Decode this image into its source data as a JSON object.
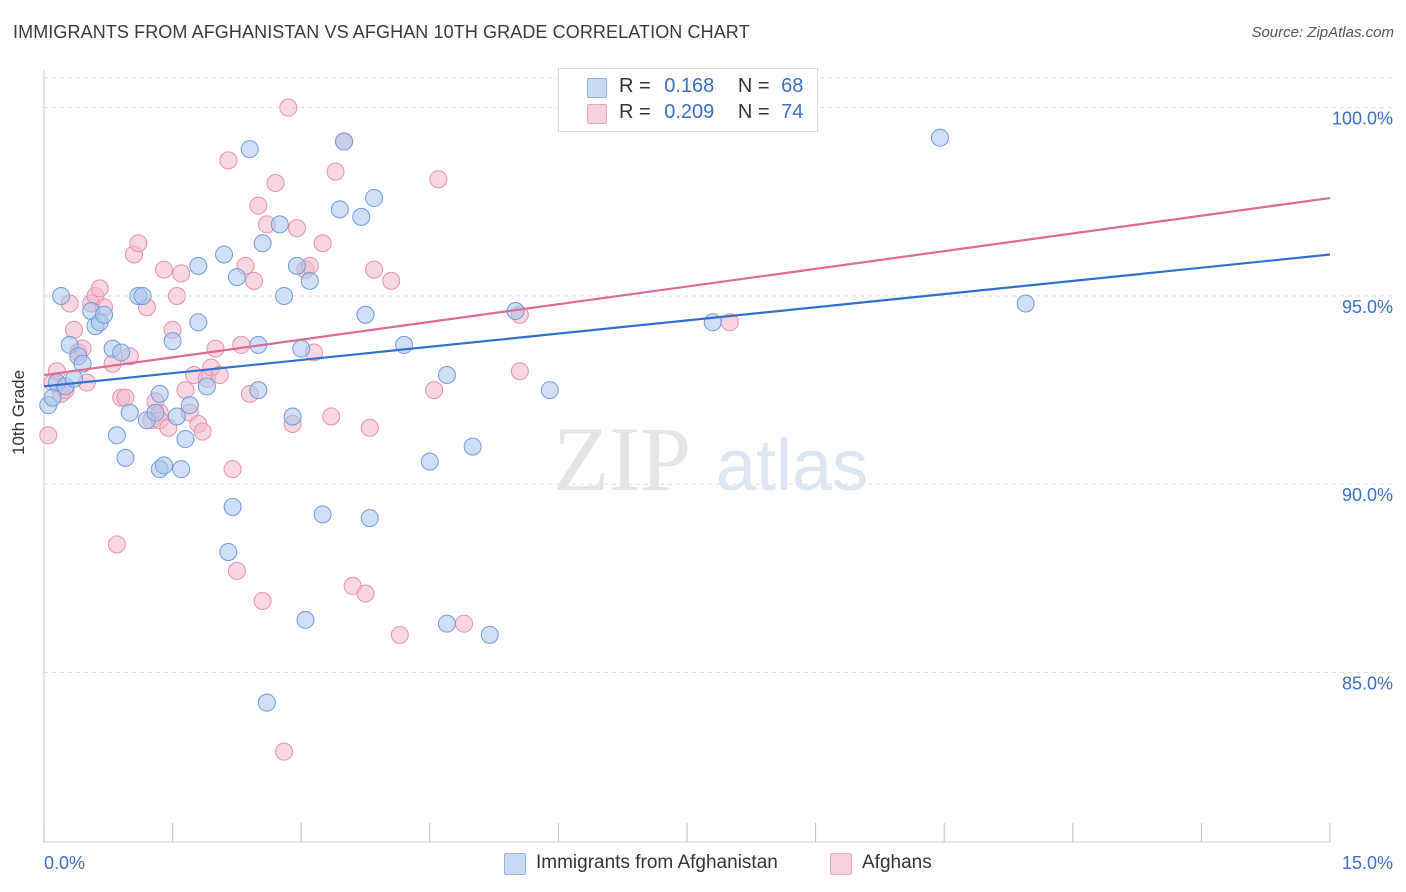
{
  "header": {
    "title": "IMMIGRANTS FROM AFGHANISTAN VS AFGHAN 10TH GRADE CORRELATION CHART",
    "source": "Source: ZipAtlas.com"
  },
  "watermark": {
    "zip": "ZIP",
    "atlas": "atlas"
  },
  "legend": {
    "rows": [
      {
        "r_label": "R =",
        "r_value": "0.168",
        "n_label": "N =",
        "n_value": "68",
        "color": "#a8c4ec"
      },
      {
        "r_label": "R =",
        "r_value": "0.209",
        "n_label": "N =",
        "n_value": "74",
        "color": "#f3b6cb"
      }
    ]
  },
  "bottom_legend": [
    {
      "label": "Immigrants from Afghanistan",
      "color": "#a8c4ec"
    },
    {
      "label": "Afghans",
      "color": "#f3b6cb"
    }
  ],
  "colors": {
    "blue_fill": "#a8c4ec",
    "blue_stroke": "#6f9bd8",
    "blue_line": "#2f6fcf",
    "pink_fill": "#f3b6cb",
    "pink_stroke": "#e690ae",
    "pink_line": "#e06a96",
    "grid": "#dddddd",
    "axis_label": "#3a6fc8"
  },
  "chart_data": {
    "type": "scatter",
    "title": "IMMIGRANTS FROM AFGHANISTAN VS AFGHAN 10TH GRADE CORRELATION CHART",
    "xlabel": "",
    "ylabel": "10th Grade",
    "xlim": [
      0,
      15
    ],
    "ylim": [
      80.5,
      101
    ],
    "x_tick_labels": [
      "0.0%",
      "15.0%"
    ],
    "y_ticks": [
      85,
      90,
      95,
      100
    ],
    "y_tick_labels": [
      "85.0%",
      "90.0%",
      "95.0%",
      "100.0%"
    ],
    "grid": true,
    "legend_position": "top-center",
    "series": [
      {
        "name": "Immigrants from Afghanistan",
        "r": 0.168,
        "n": 68,
        "trend": [
          [
            0,
            92.6
          ],
          [
            15,
            96.1
          ]
        ],
        "points": [
          [
            0.05,
            92.1
          ],
          [
            0.1,
            92.3
          ],
          [
            0.15,
            92.7
          ],
          [
            0.2,
            95.0
          ],
          [
            0.25,
            92.6
          ],
          [
            0.3,
            93.7
          ],
          [
            0.35,
            92.8
          ],
          [
            0.4,
            93.4
          ],
          [
            0.45,
            93.2
          ],
          [
            0.55,
            94.6
          ],
          [
            0.6,
            94.2
          ],
          [
            0.65,
            94.3
          ],
          [
            0.7,
            94.5
          ],
          [
            0.8,
            93.6
          ],
          [
            0.85,
            91.3
          ],
          [
            0.9,
            93.5
          ],
          [
            0.95,
            90.7
          ],
          [
            1.0,
            91.9
          ],
          [
            1.1,
            95.0
          ],
          [
            1.15,
            95.0
          ],
          [
            1.2,
            91.7
          ],
          [
            1.3,
            91.9
          ],
          [
            1.35,
            92.4
          ],
          [
            1.35,
            90.4
          ],
          [
            1.4,
            90.5
          ],
          [
            1.5,
            93.8
          ],
          [
            1.55,
            91.8
          ],
          [
            1.6,
            90.4
          ],
          [
            1.65,
            91.2
          ],
          [
            1.7,
            92.1
          ],
          [
            1.8,
            95.8
          ],
          [
            1.8,
            94.3
          ],
          [
            1.9,
            92.6
          ],
          [
            2.1,
            96.1
          ],
          [
            2.15,
            88.2
          ],
          [
            2.2,
            89.4
          ],
          [
            2.25,
            95.5
          ],
          [
            2.4,
            98.9
          ],
          [
            2.5,
            93.7
          ],
          [
            2.5,
            92.5
          ],
          [
            2.55,
            96.4
          ],
          [
            2.6,
            84.2
          ],
          [
            2.75,
            96.9
          ],
          [
            2.8,
            95.0
          ],
          [
            2.9,
            91.8
          ],
          [
            2.95,
            95.8
          ],
          [
            3.0,
            93.6
          ],
          [
            3.1,
            95.4
          ],
          [
            3.05,
            86.4
          ],
          [
            3.25,
            89.2
          ],
          [
            3.45,
            97.3
          ],
          [
            3.5,
            99.1
          ],
          [
            3.7,
            97.1
          ],
          [
            3.75,
            94.5
          ],
          [
            3.8,
            89.1
          ],
          [
            3.85,
            97.6
          ],
          [
            4.2,
            93.7
          ],
          [
            4.5,
            90.6
          ],
          [
            4.7,
            86.3
          ],
          [
            4.7,
            92.9
          ],
          [
            5.0,
            91.0
          ],
          [
            5.2,
            86.0
          ],
          [
            5.5,
            94.6
          ],
          [
            5.9,
            92.5
          ],
          [
            6.8,
            100.0
          ],
          [
            7.8,
            94.3
          ],
          [
            10.45,
            99.2
          ],
          [
            11.45,
            94.8
          ]
        ]
      },
      {
        "name": "Afghans",
        "r": 0.209,
        "n": 74,
        "trend": [
          [
            0,
            92.9
          ],
          [
            15,
            97.6
          ]
        ],
        "points": [
          [
            0.05,
            91.3
          ],
          [
            0.1,
            92.7
          ],
          [
            0.15,
            93.0
          ],
          [
            0.2,
            92.4
          ],
          [
            0.25,
            92.5
          ],
          [
            0.3,
            94.8
          ],
          [
            0.35,
            94.1
          ],
          [
            0.4,
            93.5
          ],
          [
            0.45,
            93.6
          ],
          [
            0.5,
            92.7
          ],
          [
            0.55,
            94.8
          ],
          [
            0.6,
            95.0
          ],
          [
            0.65,
            95.2
          ],
          [
            0.7,
            94.7
          ],
          [
            0.8,
            93.2
          ],
          [
            0.85,
            88.4
          ],
          [
            0.9,
            92.3
          ],
          [
            0.95,
            92.3
          ],
          [
            1.0,
            93.4
          ],
          [
            1.05,
            96.1
          ],
          [
            1.1,
            96.4
          ],
          [
            1.2,
            94.7
          ],
          [
            1.25,
            91.7
          ],
          [
            1.3,
            92.2
          ],
          [
            1.35,
            91.9
          ],
          [
            1.35,
            91.7
          ],
          [
            1.4,
            95.7
          ],
          [
            1.45,
            91.5
          ],
          [
            1.5,
            94.1
          ],
          [
            1.55,
            95.0
          ],
          [
            1.6,
            95.6
          ],
          [
            1.65,
            92.5
          ],
          [
            1.7,
            91.9
          ],
          [
            1.75,
            92.9
          ],
          [
            1.8,
            91.6
          ],
          [
            1.85,
            91.4
          ],
          [
            1.9,
            92.8
          ],
          [
            1.95,
            93.1
          ],
          [
            2.0,
            93.6
          ],
          [
            2.05,
            92.9
          ],
          [
            2.15,
            98.6
          ],
          [
            2.2,
            90.4
          ],
          [
            2.25,
            87.7
          ],
          [
            2.3,
            93.7
          ],
          [
            2.35,
            95.8
          ],
          [
            2.4,
            92.4
          ],
          [
            2.45,
            95.4
          ],
          [
            2.5,
            97.4
          ],
          [
            2.55,
            86.9
          ],
          [
            2.6,
            96.9
          ],
          [
            2.7,
            98.0
          ],
          [
            2.8,
            82.9
          ],
          [
            2.85,
            100.0
          ],
          [
            2.9,
            91.6
          ],
          [
            2.95,
            96.8
          ],
          [
            3.05,
            95.7
          ],
          [
            3.1,
            95.8
          ],
          [
            3.15,
            93.5
          ],
          [
            3.25,
            96.4
          ],
          [
            3.35,
            91.8
          ],
          [
            3.4,
            98.3
          ],
          [
            3.5,
            99.1
          ],
          [
            3.6,
            87.3
          ],
          [
            3.75,
            87.1
          ],
          [
            3.8,
            91.5
          ],
          [
            3.85,
            95.7
          ],
          [
            4.05,
            95.4
          ],
          [
            4.15,
            86.0
          ],
          [
            4.55,
            92.5
          ],
          [
            4.6,
            98.1
          ],
          [
            4.9,
            86.3
          ],
          [
            5.55,
            93.0
          ],
          [
            5.55,
            94.5
          ],
          [
            8.0,
            94.3
          ]
        ]
      }
    ]
  }
}
